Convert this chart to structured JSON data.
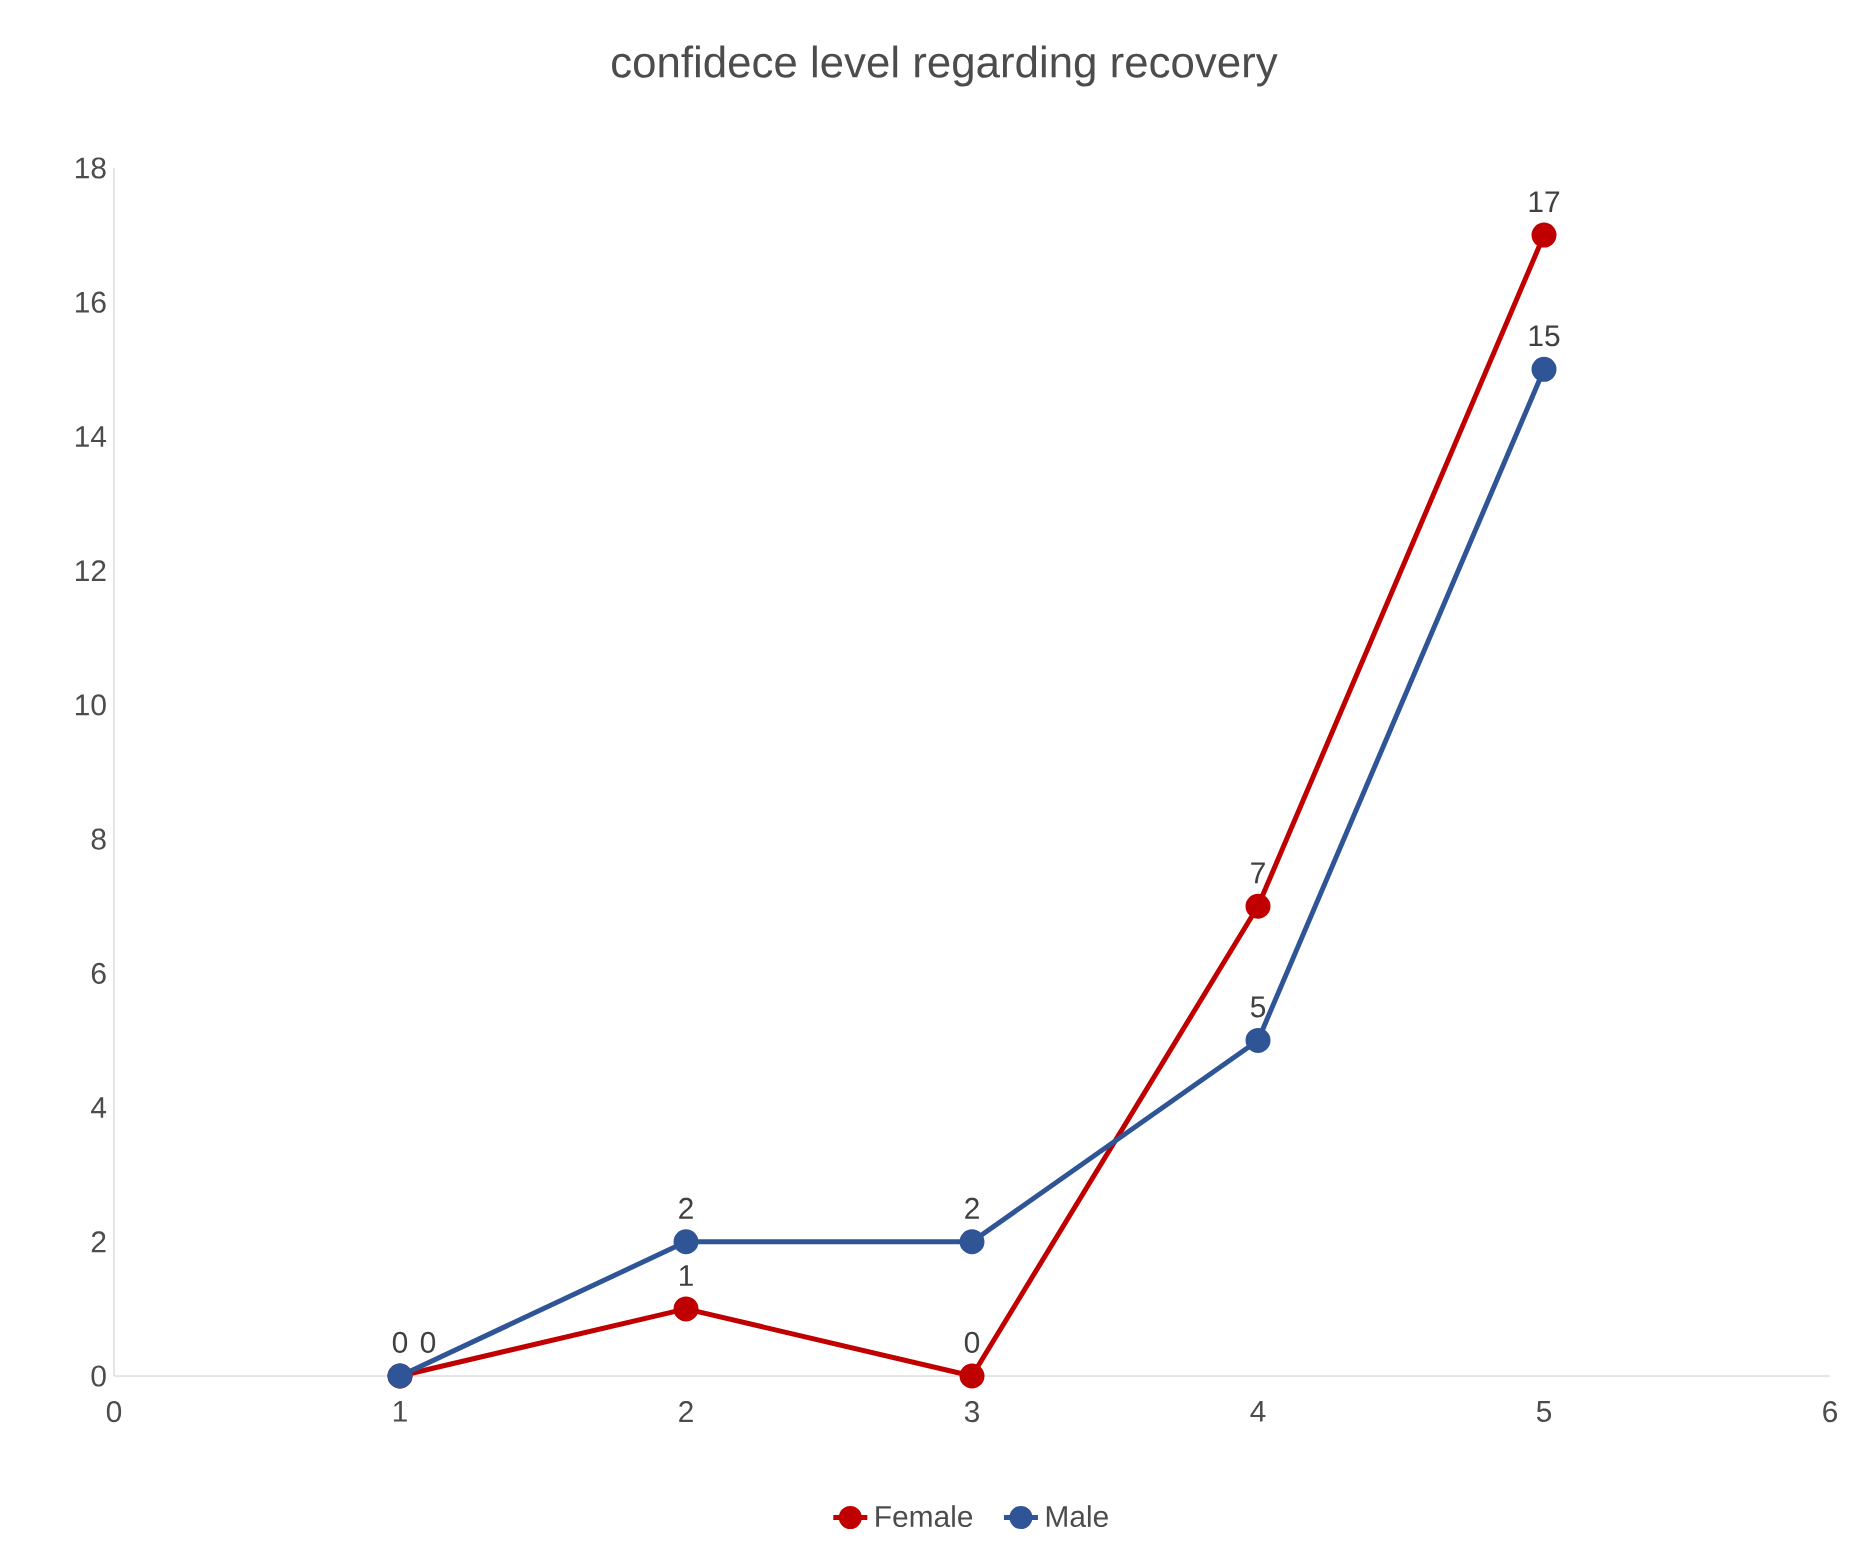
{
  "chart_data": {
    "type": "line",
    "title": "confidece level regarding recovery",
    "x": [
      1,
      2,
      3,
      4,
      5
    ],
    "series": [
      {
        "name": "Female",
        "color": "#c00000",
        "values": [
          0,
          1,
          0,
          7,
          17
        ]
      },
      {
        "name": "Male",
        "color": "#2f5597",
        "values": [
          0,
          2,
          2,
          5,
          15
        ]
      }
    ],
    "xlim": [
      0,
      6
    ],
    "xticks": [
      0,
      1,
      2,
      3,
      4,
      5,
      6
    ],
    "ylim": [
      0,
      18
    ],
    "yticks": [
      0,
      2,
      4,
      6,
      8,
      10,
      12,
      14,
      16,
      18
    ],
    "data_labels": true,
    "legend": "bottom",
    "marker": "circle",
    "line_style": "solid",
    "grid": false
  }
}
